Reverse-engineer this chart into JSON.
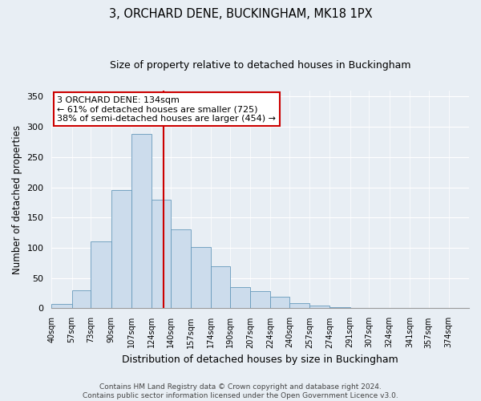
{
  "title": "3, ORCHARD DENE, BUCKINGHAM, MK18 1PX",
  "subtitle": "Size of property relative to detached houses in Buckingham",
  "xlabel": "Distribution of detached houses by size in Buckingham",
  "ylabel": "Number of detached properties",
  "bin_labels": [
    "40sqm",
    "57sqm",
    "73sqm",
    "90sqm",
    "107sqm",
    "124sqm",
    "140sqm",
    "157sqm",
    "174sqm",
    "190sqm",
    "207sqm",
    "224sqm",
    "240sqm",
    "257sqm",
    "274sqm",
    "291sqm",
    "307sqm",
    "324sqm",
    "341sqm",
    "357sqm",
    "374sqm"
  ],
  "bin_edges": [
    40,
    57,
    73,
    90,
    107,
    124,
    140,
    157,
    174,
    190,
    207,
    224,
    240,
    257,
    274,
    291,
    307,
    324,
    341,
    357,
    374
  ],
  "bar_heights": [
    7,
    30,
    110,
    196,
    288,
    180,
    130,
    101,
    69,
    35,
    28,
    19,
    9,
    5,
    2,
    1,
    0,
    0,
    0,
    1
  ],
  "bar_color": "#ccdcec",
  "bar_edge_color": "#6699bb",
  "vline_x": 134,
  "vline_color": "#cc0000",
  "ylim": [
    0,
    360
  ],
  "yticks": [
    0,
    50,
    100,
    150,
    200,
    250,
    300,
    350
  ],
  "annotation_line1": "3 ORCHARD DENE: 134sqm",
  "annotation_line2": "← 61% of detached houses are smaller (725)",
  "annotation_line3": "38% of semi-detached houses are larger (454) →",
  "annotation_box_color": "#ffffff",
  "annotation_box_edge": "#cc0000",
  "footer_line1": "Contains HM Land Registry data © Crown copyright and database right 2024.",
  "footer_line2": "Contains public sector information licensed under the Open Government Licence v3.0.",
  "background_color": "#e8eef4",
  "grid_color": "#ffffff",
  "title_fontsize": 10.5,
  "subtitle_fontsize": 9,
  "ylabel_fontsize": 8.5,
  "xlabel_fontsize": 9,
  "tick_fontsize": 7,
  "annotation_fontsize": 8,
  "footer_fontsize": 6.5
}
